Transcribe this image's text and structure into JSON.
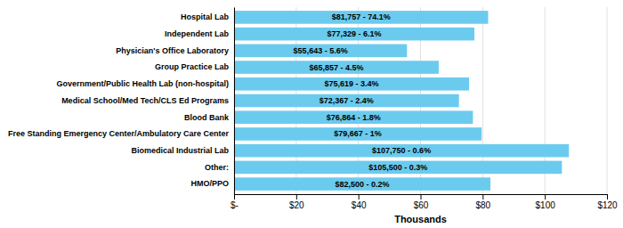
{
  "chart_data": {
    "type": "bar",
    "orientation": "horizontal",
    "categories": [
      "HMO/PPO",
      "Other:",
      "Biomedical Industrial Lab",
      "Free Standing Emergency Center/Ambulatory Care Center",
      "Blood Bank",
      "Medical School/Med Tech/CLS Ed Programs",
      "Government/Public Health Lab (non-hospital)",
      "Group Practice Lab",
      "Physician's Office Laboratory",
      "Independent Lab",
      "Hospital Lab"
    ],
    "values": [
      82500,
      105500,
      107750,
      79667,
      76864,
      72367,
      75619,
      65857,
      55643,
      77329,
      81757
    ],
    "value_labels": [
      "$82,500 - 0.2%",
      "$105,500 - 0.3%",
      "$107,750 - 0.6%",
      "$79,667 - 1%",
      "$76,864 - 1.8%",
      "$72,367 - 2.4%",
      "$75,619 - 3.4%",
      "$65,857 - 4.5%",
      "$55,643 - 5.6%",
      "$77,329 - 6.1%",
      "$81,757 - 74.1%"
    ],
    "data_labels": true,
    "color": "#6BCBEE",
    "xlabel": "Thousands",
    "xlim": [
      0,
      120000
    ],
    "xticks": [
      {
        "value": 0,
        "label": "$-"
      },
      {
        "value": 20000,
        "label": "$20"
      },
      {
        "value": 40000,
        "label": "$40"
      },
      {
        "value": 60000,
        "label": "$60"
      },
      {
        "value": 80000,
        "label": "$80"
      },
      {
        "value": 100000,
        "label": "$100"
      },
      {
        "value": 120000,
        "label": "$120"
      }
    ],
    "grid": true
  }
}
